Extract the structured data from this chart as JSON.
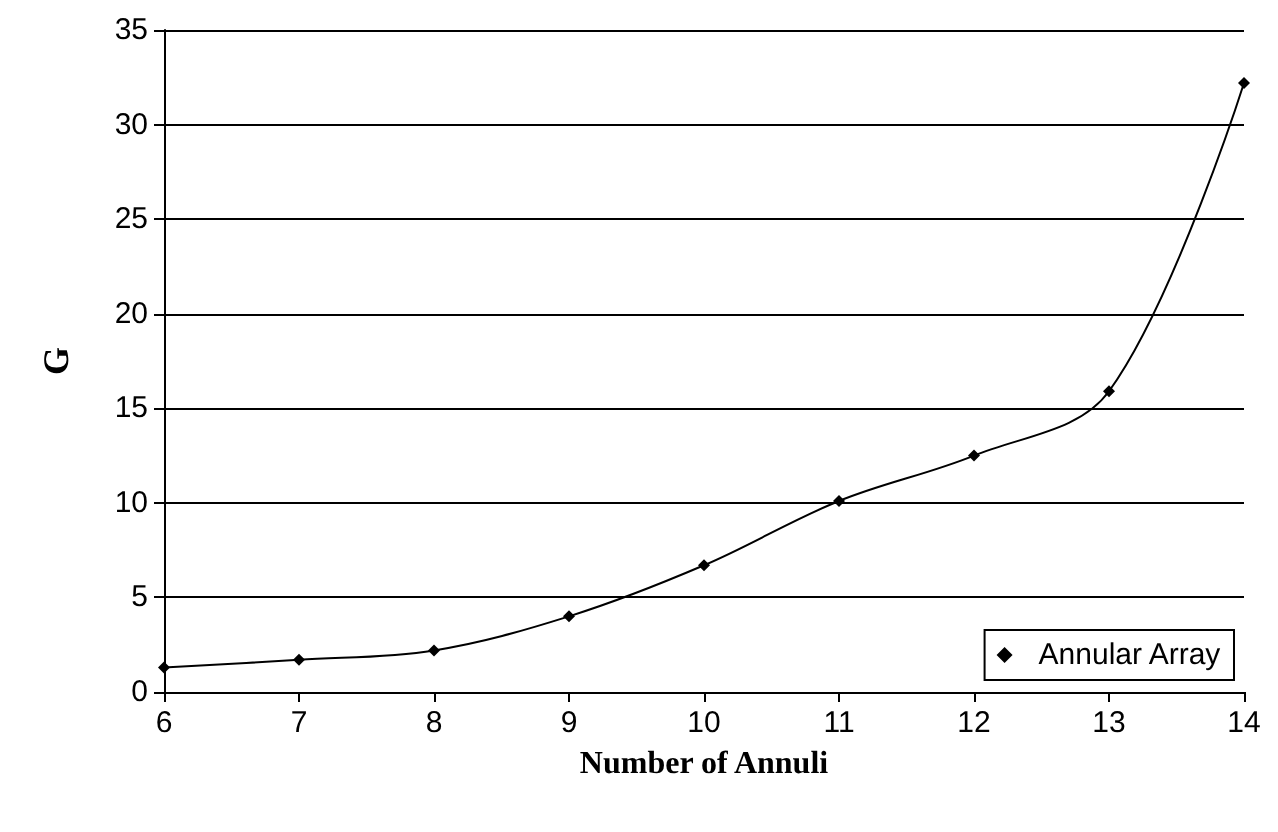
{
  "chart_data": {
    "type": "line",
    "xlabel": "Number of Annuli",
    "ylabel": "G",
    "x": [
      6,
      7,
      8,
      9,
      10,
      11,
      12,
      13,
      14
    ],
    "series": [
      {
        "name": "Annular Array",
        "color": "#000000",
        "values": [
          1.3,
          1.7,
          2.2,
          4.0,
          6.7,
          10.1,
          12.5,
          15.9,
          32.2
        ]
      }
    ],
    "xlim": [
      6,
      14
    ],
    "xticks": [
      6,
      7,
      8,
      9,
      10,
      11,
      12,
      13,
      14
    ],
    "ylim": [
      0,
      35
    ],
    "yticks": [
      0,
      5,
      10,
      15,
      20,
      25,
      30,
      35
    ],
    "grid": "y",
    "legend": "bottom right",
    "marker": "diamond",
    "line_style": "solid"
  }
}
